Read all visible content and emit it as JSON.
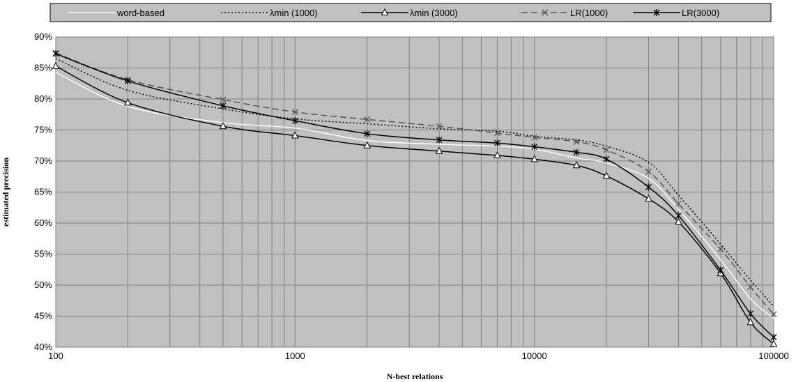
{
  "chart_data": {
    "type": "line",
    "title": "",
    "xlabel": "N-best relations",
    "ylabel": "estimated precision",
    "x_scale": "log",
    "xlim": [
      100,
      100000
    ],
    "ylim": [
      40,
      90
    ],
    "x_tick_labels": [
      "100",
      "1000",
      "10000",
      "100000"
    ],
    "y_tick_labels": [
      "40%",
      "45%",
      "50%",
      "55%",
      "60%",
      "65%",
      "70%",
      "75%",
      "80%",
      "85%",
      "90%"
    ],
    "grid": true,
    "legend_position": "top",
    "plot_background": "#c0c0c0",
    "series": [
      {
        "name": "word-based",
        "color": "#ffffff",
        "dash": "solid",
        "marker": "none",
        "x": [
          100,
          200,
          500,
          1000,
          2000,
          4000,
          7000,
          10000,
          15000,
          20000,
          30000,
          40000,
          60000,
          80000,
          100000
        ],
        "y": [
          84.3,
          78.8,
          76.2,
          75.3,
          73.3,
          72.7,
          72.4,
          71.9,
          70.5,
          69.7,
          67.2,
          62.2,
          54.1,
          47.8,
          44.6
        ]
      },
      {
        "name": "λmin (1000)",
        "color": "#000000",
        "dash": "dotted",
        "marker": "none",
        "x": [
          100,
          200,
          500,
          1000,
          2000,
          4000,
          7000,
          10000,
          15000,
          20000,
          30000,
          40000,
          60000,
          80000,
          100000
        ],
        "y": [
          86.5,
          81.4,
          78.4,
          76.8,
          76.0,
          75.2,
          74.8,
          74.0,
          73.4,
          72.4,
          69.8,
          64.5,
          56.6,
          50.8,
          46.6
        ]
      },
      {
        "name": "λmin (3000)",
        "color": "#000000",
        "dash": "solid",
        "marker": "triangle",
        "x": [
          100,
          200,
          500,
          1000,
          2000,
          4000,
          7000,
          10000,
          15000,
          20000,
          30000,
          40000,
          60000,
          80000,
          100000
        ],
        "y": [
          85.3,
          79.4,
          75.6,
          74.1,
          72.5,
          71.6,
          70.9,
          70.3,
          69.3,
          67.6,
          63.9,
          60.2,
          51.9,
          44.0,
          40.5
        ]
      },
      {
        "name": "LR(1000)",
        "color": "#555555",
        "dash": "dashed",
        "marker": "x",
        "x": [
          100,
          200,
          500,
          1000,
          2000,
          4000,
          7000,
          10000,
          15000,
          20000,
          30000,
          40000,
          60000,
          80000,
          100000
        ],
        "y": [
          87.4,
          83.1,
          79.9,
          77.9,
          76.7,
          75.6,
          74.5,
          73.8,
          73.1,
          71.8,
          68.3,
          63.1,
          55.8,
          49.7,
          45.3
        ]
      },
      {
        "name": "LR(3000)",
        "color": "#000000",
        "dash": "solid",
        "marker": "star",
        "x": [
          100,
          200,
          500,
          1000,
          2000,
          4000,
          7000,
          10000,
          15000,
          20000,
          30000,
          40000,
          60000,
          80000,
          100000
        ],
        "y": [
          87.3,
          82.9,
          78.9,
          76.5,
          74.4,
          73.4,
          72.9,
          72.3,
          71.4,
          70.3,
          65.8,
          61.2,
          52.4,
          45.4,
          41.6
        ]
      }
    ]
  }
}
